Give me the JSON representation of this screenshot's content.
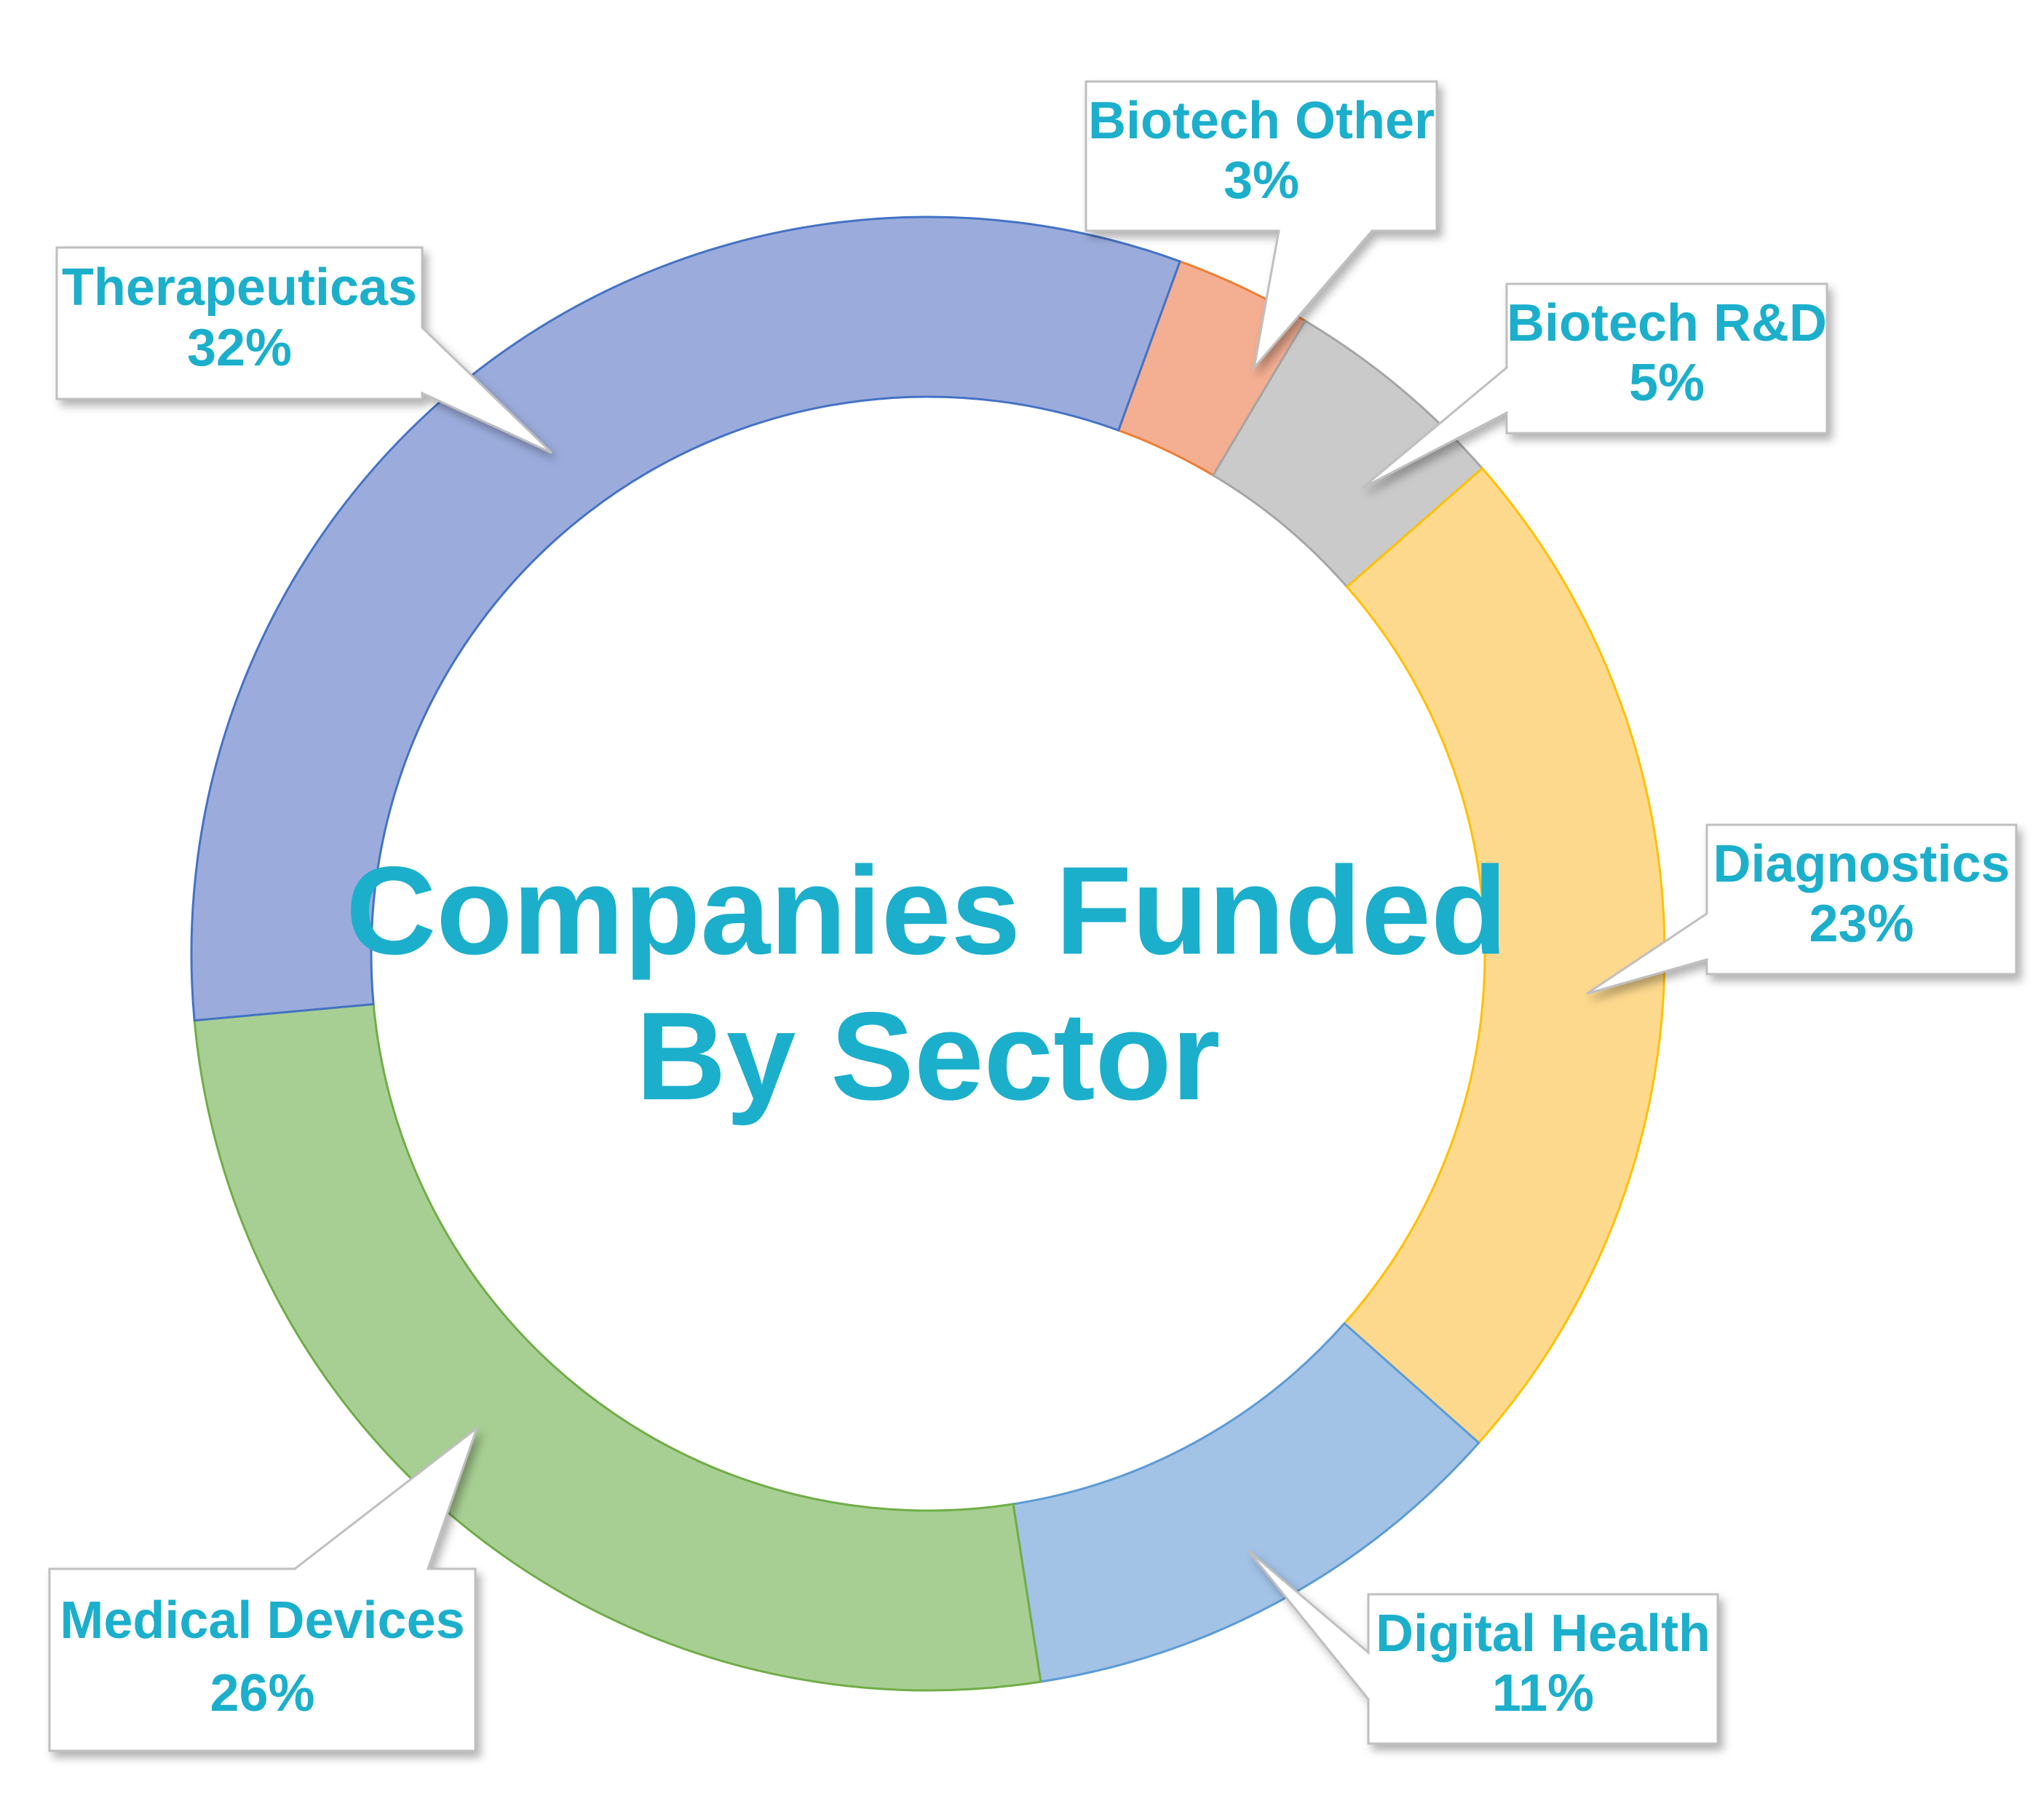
{
  "chart_data": {
    "type": "doughnut",
    "title_lines": [
      "Companies Funded",
      "By Sector"
    ],
    "label_color": "#1BAFCC",
    "slices": [
      {
        "name": "Biotech Other",
        "label": "3%",
        "value": 3,
        "color": "#F4AE92",
        "edge": "#ED7D31"
      },
      {
        "name": "Biotech R&D",
        "label": "5%",
        "value": 5,
        "color": "#CACACA",
        "edge": "#A5A5A5"
      },
      {
        "name": "Diagnostics",
        "label": "23%",
        "value": 23,
        "color": "#FDD98E",
        "edge": "#FFC000"
      },
      {
        "name": "Digital Health",
        "label": "11%",
        "value": 11,
        "color": "#A2C2E6",
        "edge": "#5B9BD5"
      },
      {
        "name": "Medical Devices",
        "label": "26%",
        "value": 26,
        "color": "#A8CF93",
        "edge": "#70AD47"
      },
      {
        "name": "Therapeuticas",
        "label": "32%",
        "value": 32,
        "color": "#9BACDC",
        "edge": "#4472C4"
      }
    ]
  }
}
